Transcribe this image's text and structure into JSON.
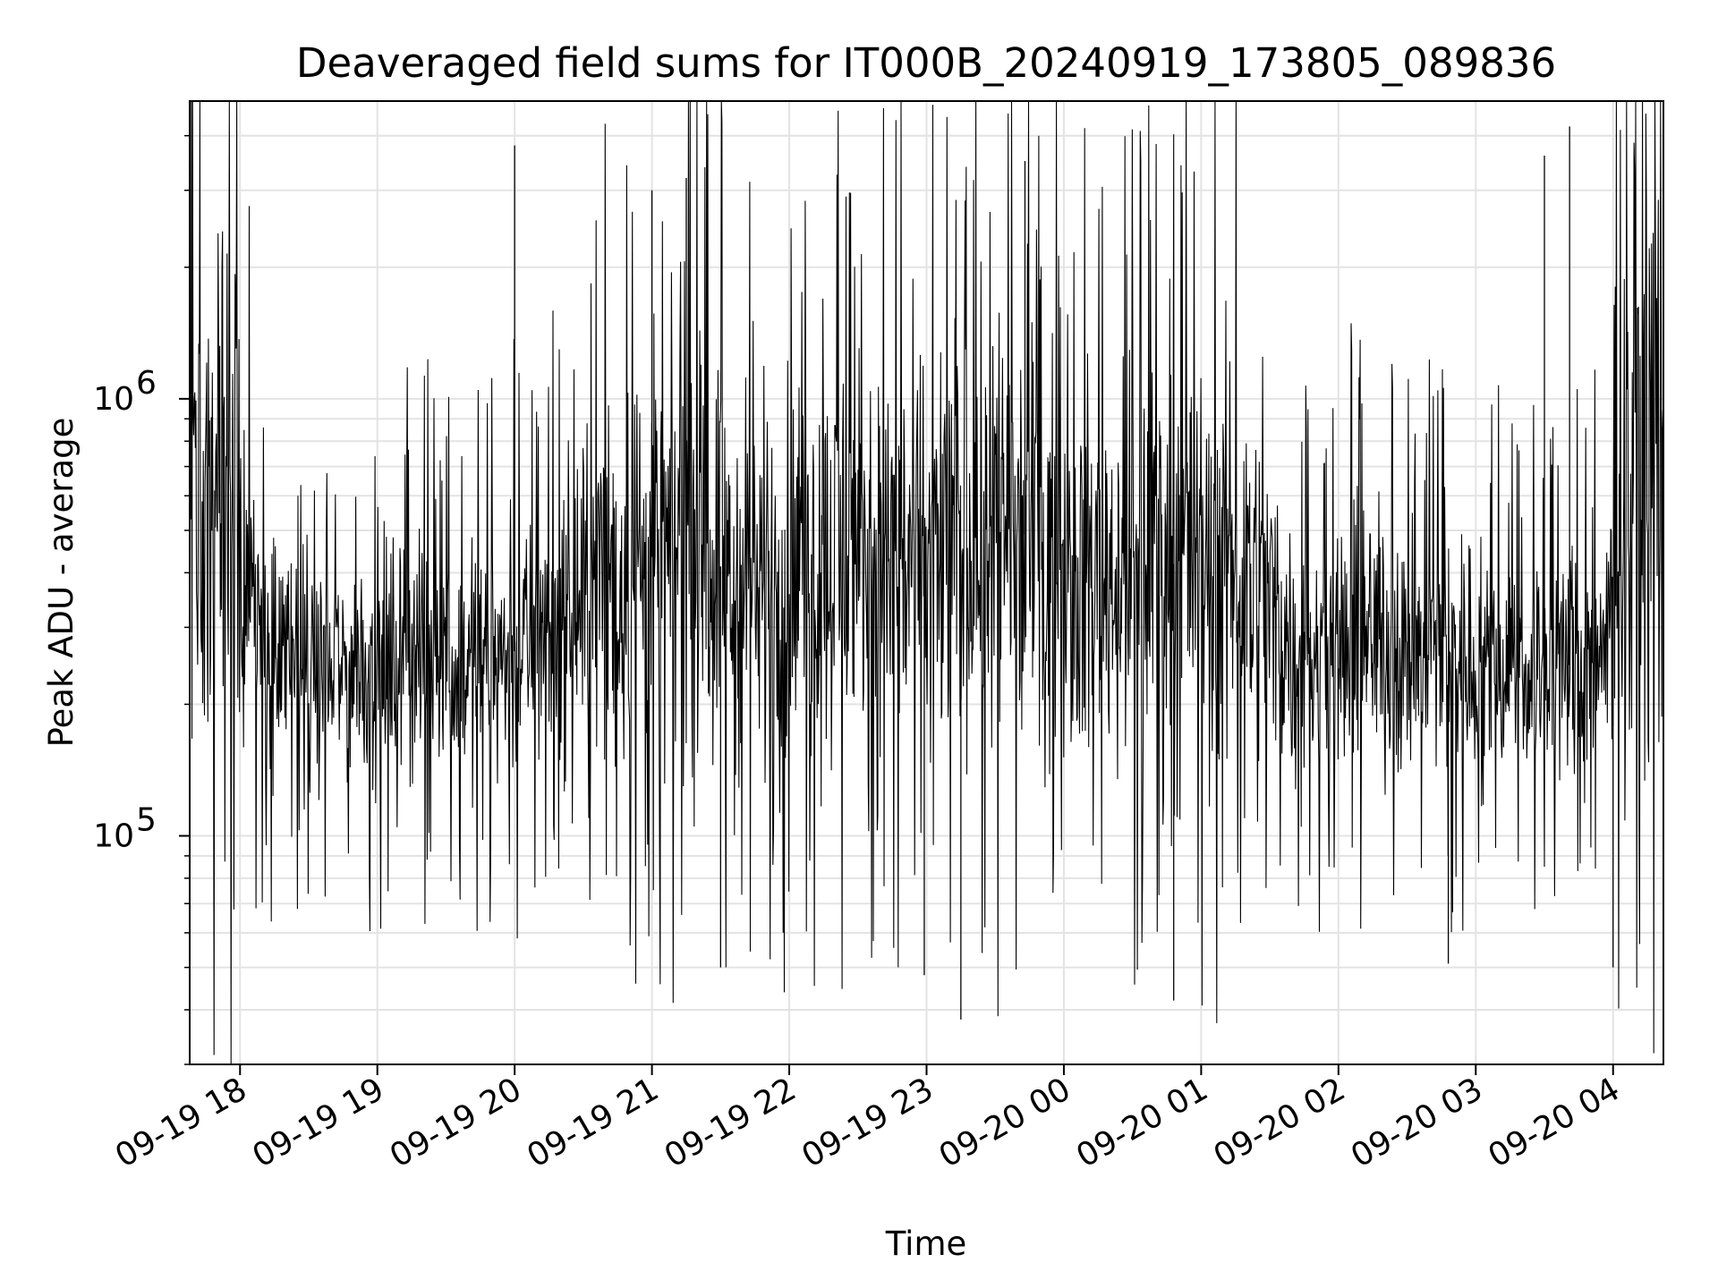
{
  "chart_data": {
    "type": "line",
    "title": "Deaveraged field sums for IT000B_20240919_173805_089836",
    "xlabel": "Time",
    "ylabel": "Peak ADU - average",
    "x_scale": "time",
    "y_scale": "log",
    "xlim": [
      "2024-09-19 17:38",
      "2024-09-20 04:22"
    ],
    "ylim": [
      30000,
      4800000
    ],
    "xticks": [
      {
        "value": "2024-09-19 18:00",
        "label": "09-19 18"
      },
      {
        "value": "2024-09-19 19:00",
        "label": "09-19 19"
      },
      {
        "value": "2024-09-19 20:00",
        "label": "09-19 20"
      },
      {
        "value": "2024-09-19 21:00",
        "label": "09-19 21"
      },
      {
        "value": "2024-09-19 22:00",
        "label": "09-19 22"
      },
      {
        "value": "2024-09-19 23:00",
        "label": "09-19 23"
      },
      {
        "value": "2024-09-20 00:00",
        "label": "09-20 00"
      },
      {
        "value": "2024-09-20 01:00",
        "label": "09-20 01"
      },
      {
        "value": "2024-09-20 02:00",
        "label": "09-20 02"
      },
      {
        "value": "2024-09-20 03:00",
        "label": "09-20 03"
      },
      {
        "value": "2024-09-20 04:00",
        "label": "09-20 04"
      }
    ],
    "yticks": [
      {
        "value": 100000,
        "label": "10",
        "exp": "5"
      },
      {
        "value": 1000000,
        "label": "10",
        "exp": "6"
      }
    ],
    "grid": true,
    "series_color": "#000000",
    "band_profile": [
      {
        "x": "2024-09-19 17:38",
        "y": 600000
      },
      {
        "x": "2024-09-19 17:58",
        "y": 800000
      },
      {
        "x": "2024-09-19 18:05",
        "y": 300000
      },
      {
        "x": "2024-09-19 18:30",
        "y": 220000
      },
      {
        "x": "2024-09-19 19:00",
        "y": 260000
      },
      {
        "x": "2024-09-19 19:45",
        "y": 250000
      },
      {
        "x": "2024-09-19 20:15",
        "y": 280000
      },
      {
        "x": "2024-09-19 20:45",
        "y": 420000
      },
      {
        "x": "2024-09-19 21:15",
        "y": 450000
      },
      {
        "x": "2024-09-19 21:45",
        "y": 380000
      },
      {
        "x": "2024-09-19 22:15",
        "y": 420000
      },
      {
        "x": "2024-09-19 22:45",
        "y": 420000
      },
      {
        "x": "2024-09-19 23:15",
        "y": 450000
      },
      {
        "x": "2024-09-19 23:35",
        "y": 550000
      },
      {
        "x": "2024-09-20 00:00",
        "y": 380000
      },
      {
        "x": "2024-09-20 00:30",
        "y": 400000
      },
      {
        "x": "2024-09-20 01:15",
        "y": 450000
      },
      {
        "x": "2024-09-20 01:45",
        "y": 250000
      },
      {
        "x": "2024-09-20 02:15",
        "y": 280000
      },
      {
        "x": "2024-09-20 02:45",
        "y": 260000
      },
      {
        "x": "2024-09-20 03:20",
        "y": 240000
      },
      {
        "x": "2024-09-20 03:55",
        "y": 250000
      },
      {
        "x": "2024-09-20 04:10",
        "y": 850000
      },
      {
        "x": "2024-09-20 04:22",
        "y": 800000
      }
    ],
    "peaks": [
      {
        "x": "2024-09-19 20:00",
        "y": 3800000
      },
      {
        "x": "2024-09-19 21:00",
        "y": 3000000
      },
      {
        "x": "2024-09-19 21:15",
        "y": 3200000
      },
      {
        "x": "2024-09-19 23:43",
        "y": 3500000
      },
      {
        "x": "2024-09-20 03:30",
        "y": 3600000
      },
      {
        "x": "2024-09-20 03:41",
        "y": 4200000
      }
    ],
    "troughs": [
      {
        "x": "2024-09-19 21:30",
        "y": 50000
      },
      {
        "x": "2024-09-19 22:59",
        "y": 48000
      },
      {
        "x": "2024-09-19 23:15",
        "y": 38000
      },
      {
        "x": "2024-09-20 00:48",
        "y": 42000
      },
      {
        "x": "2024-09-20 02:48",
        "y": 51000
      },
      {
        "x": "2024-09-20 04:00",
        "y": 50000
      }
    ]
  }
}
